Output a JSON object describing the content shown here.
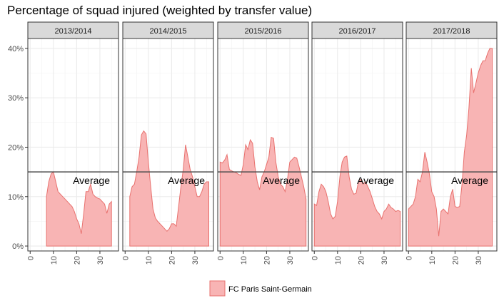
{
  "chart_data": {
    "type": "area",
    "title": "Percentage of squad injured (weighted by transfer value)",
    "xlabel": "",
    "ylabel": "",
    "xlim": [
      -1,
      38
    ],
    "ylim": [
      -0.01,
      0.42
    ],
    "x_ticks": [
      0,
      10,
      20,
      30
    ],
    "y_ticks": [
      0,
      0.1,
      0.2,
      0.3,
      0.4
    ],
    "y_tick_labels": [
      "0%",
      "10%",
      "20%",
      "30%",
      "40%"
    ],
    "average_line": {
      "value": 0.15,
      "label": "Average"
    },
    "series_name": "FC Paris Saint-Germain",
    "fill_color": "#f8b4b4",
    "line_color": "#e8716e",
    "grid": true,
    "legend_position": "bottom",
    "panels": [
      {
        "label": "2013/2014",
        "x": [
          7,
          8,
          9,
          10,
          11,
          12,
          13,
          14,
          15,
          16,
          17,
          18,
          19,
          20,
          21,
          22,
          23,
          24,
          25,
          26,
          27,
          28,
          29,
          30,
          31,
          32,
          33,
          34,
          35
        ],
        "y": [
          0.1,
          0.13,
          0.146,
          0.15,
          0.13,
          0.11,
          0.105,
          0.1,
          0.095,
          0.09,
          0.085,
          0.08,
          0.07,
          0.055,
          0.045,
          0.025,
          0.065,
          0.11,
          0.11,
          0.125,
          0.105,
          0.1,
          0.097,
          0.095,
          0.09,
          0.085,
          0.066,
          0.085,
          0.09
        ]
      },
      {
        "label": "2014/2015",
        "x": [
          2,
          3,
          4,
          5,
          6,
          7,
          8,
          9,
          10,
          11,
          12,
          13,
          14,
          15,
          16,
          17,
          18,
          19,
          20,
          21,
          22,
          23,
          24,
          25,
          26,
          27,
          28,
          29,
          30,
          31,
          32,
          33,
          34,
          35,
          36
        ],
        "y": [
          0.1,
          0.12,
          0.125,
          0.15,
          0.18,
          0.225,
          0.233,
          0.227,
          0.17,
          0.12,
          0.075,
          0.057,
          0.05,
          0.045,
          0.04,
          0.035,
          0.03,
          0.035,
          0.045,
          0.045,
          0.04,
          0.08,
          0.12,
          0.155,
          0.205,
          0.18,
          0.155,
          0.14,
          0.12,
          0.1,
          0.1,
          0.11,
          0.125,
          0.13,
          0.13
        ]
      },
      {
        "label": "2015/2016",
        "x": [
          0,
          1,
          2,
          3,
          4,
          5,
          6,
          7,
          8,
          9,
          10,
          11,
          12,
          13,
          14,
          15,
          16,
          17,
          18,
          19,
          20,
          21,
          22,
          23,
          24,
          25,
          26,
          27,
          28,
          29,
          30,
          31,
          32,
          33,
          34,
          35,
          36,
          37
        ],
        "y": [
          0.17,
          0.168,
          0.174,
          0.185,
          0.155,
          0.152,
          0.15,
          0.148,
          0.145,
          0.143,
          0.165,
          0.205,
          0.195,
          0.215,
          0.208,
          0.16,
          0.13,
          0.114,
          0.14,
          0.15,
          0.165,
          0.18,
          0.22,
          0.218,
          0.17,
          0.14,
          0.125,
          0.12,
          0.11,
          0.135,
          0.17,
          0.175,
          0.18,
          0.178,
          0.16,
          0.14,
          0.12,
          0.095
        ]
      },
      {
        "label": "2016/2017",
        "x": [
          0,
          1,
          2,
          3,
          4,
          5,
          6,
          7,
          8,
          9,
          10,
          11,
          12,
          13,
          14,
          15,
          16,
          17,
          18,
          19,
          20,
          21,
          22,
          23,
          24,
          25,
          26,
          27,
          28,
          29,
          30,
          31,
          32,
          33,
          34,
          35,
          36,
          37
        ],
        "y": [
          0.085,
          0.082,
          0.11,
          0.125,
          0.12,
          0.11,
          0.09,
          0.065,
          0.055,
          0.06,
          0.09,
          0.14,
          0.17,
          0.18,
          0.182,
          0.14,
          0.115,
          0.105,
          0.107,
          0.13,
          0.135,
          0.125,
          0.13,
          0.12,
          0.11,
          0.095,
          0.08,
          0.07,
          0.065,
          0.055,
          0.07,
          0.075,
          0.085,
          0.078,
          0.075,
          0.07,
          0.072,
          0.07
        ]
      },
      {
        "label": "2017/2018",
        "x": [
          0,
          1,
          2,
          3,
          4,
          5,
          6,
          7,
          8,
          9,
          10,
          11,
          12,
          13,
          14,
          15,
          16,
          17,
          18,
          19,
          20,
          21,
          22,
          23,
          24,
          25,
          26,
          27,
          28,
          29,
          30,
          31,
          32,
          33,
          34,
          35,
          36
        ],
        "y": [
          0.075,
          0.08,
          0.085,
          0.1,
          0.135,
          0.13,
          0.15,
          0.19,
          0.17,
          0.145,
          0.11,
          0.1,
          0.075,
          0.02,
          0.07,
          0.075,
          0.07,
          0.065,
          0.1,
          0.115,
          0.08,
          0.078,
          0.08,
          0.125,
          0.19,
          0.225,
          0.28,
          0.36,
          0.31,
          0.33,
          0.35,
          0.365,
          0.375,
          0.375,
          0.39,
          0.4,
          0.4
        ]
      }
    ]
  }
}
